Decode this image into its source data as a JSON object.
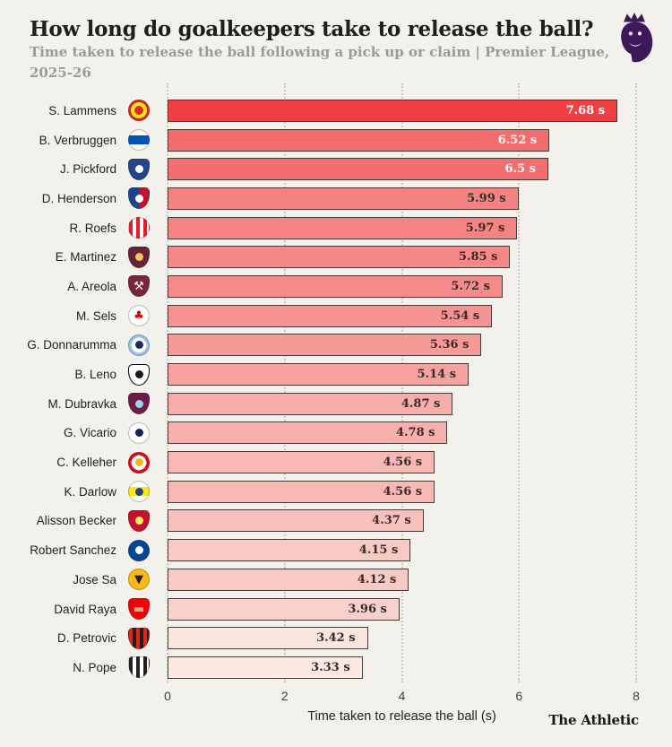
{
  "footer": {
    "credit": "The Athletic"
  },
  "logo": {
    "name": "premier-league-lion-logo",
    "color": "#3D195B"
  },
  "chart_data": {
    "type": "bar",
    "orientation": "horizontal",
    "title": "How long do goalkeepers take to release the ball?",
    "subtitle": "Time taken to release the ball following a pick up or claim | Premier League, 2025-26",
    "xlabel": "Time taken to release the ball (s)",
    "unit": "s",
    "xlim": [
      0,
      8
    ],
    "xticks": [
      0,
      2,
      4,
      6,
      8
    ],
    "grid": "dotted-vertical",
    "legend": "none",
    "bar_border_color": "#453B3B",
    "rows": [
      {
        "player": "S. Lammens",
        "team": "Manchester United",
        "value": 7.68,
        "label": "7.68 s",
        "bar_color": "#F04043",
        "label_color": "#FFFFFF",
        "crest": {
          "shape": "circle",
          "pattern": "rings",
          "colors": [
            "#DA291C",
            "#FBE122"
          ]
        }
      },
      {
        "player": "B. Verbruggen",
        "team": "Brighton & Hove Albion",
        "value": 6.52,
        "label": "6.52 s",
        "bar_color": "#F36D6D",
        "label_color": "#FFFFFF",
        "crest": {
          "shape": "circle",
          "pattern": "band",
          "colors": [
            "#FFFFFF",
            "#0057B8"
          ]
        }
      },
      {
        "player": "J. Pickford",
        "team": "Everton",
        "value": 6.5,
        "label": "6.5 s",
        "bar_color": "#F36E6E",
        "label_color": "#FFFFFF",
        "crest": {
          "shape": "shield",
          "pattern": "solid",
          "colors": [
            "#274488"
          ],
          "emblem": "#FFFFFF"
        }
      },
      {
        "player": "D. Henderson",
        "team": "Crystal Palace",
        "value": 5.99,
        "label": "5.99 s",
        "bar_color": "#F48281",
        "label_color": "#3A2B2B",
        "crest": {
          "shape": "shield",
          "pattern": "split",
          "colors": [
            "#1B458F",
            "#C4122E"
          ],
          "emblem": "#FFFFFF"
        }
      },
      {
        "player": "R. Roefs",
        "team": "Sunderland",
        "value": 5.97,
        "label": "5.97 s",
        "bar_color": "#F48382",
        "label_color": "#3A2B2B",
        "crest": {
          "shape": "circle",
          "pattern": "stripes",
          "colors": [
            "#EB172B",
            "#FFFFFF"
          ]
        }
      },
      {
        "player": "E. Martinez",
        "team": "Aston Villa",
        "value": 5.85,
        "label": "5.85 s",
        "bar_color": "#F58786",
        "label_color": "#3A2B2B",
        "crest": {
          "shape": "shield",
          "pattern": "solid",
          "colors": [
            "#67233A"
          ],
          "emblem": "#F0C75E"
        }
      },
      {
        "player": "A. Areola",
        "team": "West Ham United",
        "value": 5.72,
        "label": "5.72 s",
        "bar_color": "#F58C8B",
        "label_color": "#3A2B2B",
        "crest": {
          "shape": "shield",
          "pattern": "solid",
          "colors": [
            "#7A263A"
          ],
          "emblem": "#FFFFFF",
          "glyph": "⚒"
        }
      },
      {
        "player": "M. Sels",
        "team": "Nottingham Forest",
        "value": 5.54,
        "label": "5.54 s",
        "bar_color": "#F59392",
        "label_color": "#3A2B2B",
        "crest": {
          "shape": "circle",
          "pattern": "solid",
          "colors": [
            "#FFFFFF"
          ],
          "emblem": "#DD0000",
          "glyph": "♣"
        }
      },
      {
        "player": "G. Donnarumma",
        "team": "Manchester City",
        "value": 5.36,
        "label": "5.36 s",
        "bar_color": "#F69A98",
        "label_color": "#3A2B2B",
        "crest": {
          "shape": "circle",
          "pattern": "disc",
          "colors": [
            "#98C5E9",
            "#FFFFFF"
          ],
          "emblem": "#1C2C5B"
        }
      },
      {
        "player": "B. Leno",
        "team": "Fulham",
        "value": 5.14,
        "label": "5.14 s",
        "bar_color": "#F6A3A0",
        "label_color": "#3A2B2B",
        "crest": {
          "shape": "shield",
          "pattern": "solid",
          "colors": [
            "#FFFFFF"
          ],
          "emblem": "#1A1A1A",
          "border": "#000000"
        }
      },
      {
        "player": "M. Dubravka",
        "team": "Burnley",
        "value": 4.87,
        "label": "4.87 s",
        "bar_color": "#F7ADAA",
        "label_color": "#3A2B2B",
        "crest": {
          "shape": "shield",
          "pattern": "solid",
          "colors": [
            "#6C1D45"
          ],
          "emblem": "#99D6EA"
        }
      },
      {
        "player": "G. Vicario",
        "team": "Tottenham Hotspur",
        "value": 4.78,
        "label": "4.78 s",
        "bar_color": "#F7B1AD",
        "label_color": "#3A2B2B",
        "crest": {
          "shape": "circle",
          "pattern": "solid",
          "colors": [
            "#FFFFFF"
          ],
          "emblem": "#132257"
        }
      },
      {
        "player": "C. Kelleher",
        "team": "Brentford",
        "value": 4.56,
        "label": "4.56 s",
        "bar_color": "#F8B9B5",
        "label_color": "#3A2B2B",
        "crest": {
          "shape": "circle",
          "pattern": "disc",
          "colors": [
            "#E30613",
            "#FFFFFF"
          ],
          "emblem": "#F4B71A"
        }
      },
      {
        "player": "K. Darlow",
        "team": "Leeds United",
        "value": 4.56,
        "label": "4.56 s",
        "bar_color": "#F8B9B5",
        "label_color": "#3A2B2B",
        "crest": {
          "shape": "circle",
          "pattern": "band",
          "colors": [
            "#FFFFFF",
            "#F8E71C"
          ],
          "emblem": "#1D428A"
        }
      },
      {
        "player": "Alisson Becker",
        "team": "Liverpool",
        "value": 4.37,
        "label": "4.37 s",
        "bar_color": "#F8C1BC",
        "label_color": "#3A2B2B",
        "crest": {
          "shape": "shield",
          "pattern": "solid",
          "colors": [
            "#C8102E"
          ],
          "emblem": "#F6EB61"
        }
      },
      {
        "player": "Robert Sanchez",
        "team": "Chelsea",
        "value": 4.15,
        "label": "4.15 s",
        "bar_color": "#F9C9C4",
        "label_color": "#3A2B2B",
        "crest": {
          "shape": "circle",
          "pattern": "solid",
          "colors": [
            "#034694"
          ],
          "emblem": "#FFFFFF"
        }
      },
      {
        "player": "Jose Sa",
        "team": "Wolverhampton Wanderers",
        "value": 4.12,
        "label": "4.12 s",
        "bar_color": "#F9CAC5",
        "label_color": "#3A2B2B",
        "crest": {
          "shape": "circle",
          "pattern": "solid",
          "colors": [
            "#FDB913"
          ],
          "emblem": "#231F20",
          "glyph": "▼"
        }
      },
      {
        "player": "David Raya",
        "team": "Arsenal",
        "value": 3.96,
        "label": "3.96 s",
        "bar_color": "#F9D0CB",
        "label_color": "#3A2B2B",
        "crest": {
          "shape": "shield",
          "pattern": "solid",
          "colors": [
            "#EF0107"
          ],
          "emblem": "#C9B37E",
          "glyph": "▬"
        }
      },
      {
        "player": "D. Petrovic",
        "team": "AFC Bournemouth",
        "value": 3.42,
        "label": "3.42 s",
        "bar_color": "#FBE5DF",
        "label_color": "#3A2B2B",
        "crest": {
          "shape": "shield",
          "pattern": "stripes",
          "colors": [
            "#DA291C",
            "#231F20"
          ]
        }
      },
      {
        "player": "N. Pope",
        "team": "Newcastle United",
        "value": 3.33,
        "label": "3.33 s",
        "bar_color": "#FBE9E2",
        "label_color": "#3A2B2B",
        "crest": {
          "shape": "shield",
          "pattern": "stripes",
          "colors": [
            "#241F20",
            "#FFFFFF"
          ]
        }
      }
    ]
  }
}
